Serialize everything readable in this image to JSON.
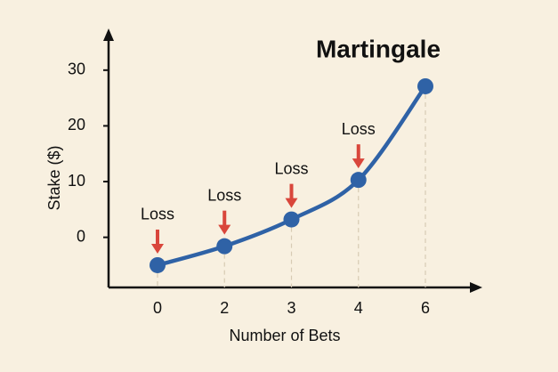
{
  "chart_data": {
    "type": "line",
    "title": "Martingale",
    "x_label": "Number of Bets",
    "y_label": "Stake ($)",
    "categories": [
      "0",
      "2",
      "3",
      "4",
      "6"
    ],
    "series": [
      {
        "name": "Stake",
        "color": "#2f62a6",
        "values": [
          -5,
          -1.6,
          3.2,
          10.3,
          27.1
        ]
      }
    ],
    "annotations": [
      "Loss",
      "Loss",
      "Loss",
      "Loss",
      null
    ],
    "annotation_color": "#d9463b",
    "ylim": [
      -9,
      37
    ],
    "yticks": [
      0,
      10,
      20,
      30
    ],
    "grid": false
  }
}
